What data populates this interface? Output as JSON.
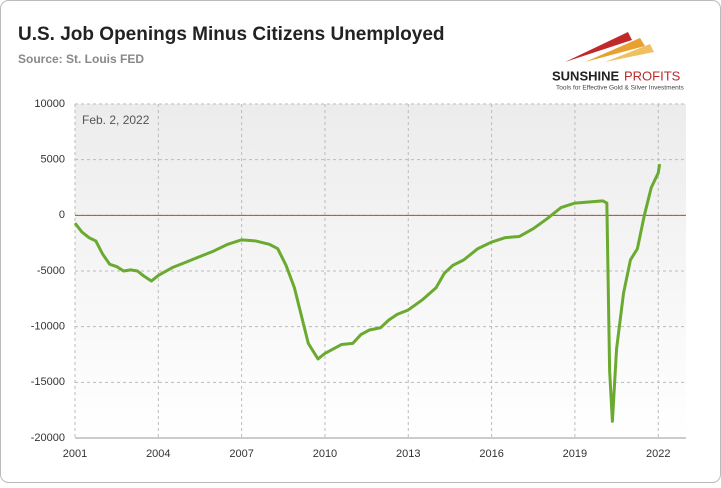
{
  "chart_data": {
    "type": "line",
    "title": "U.S. Job Openings Minus Citizens Unemployed",
    "subtitle": "Source: St. Louis FED",
    "annotation": "Feb. 2, 2022",
    "logo": {
      "name_1": "SUNSHINE",
      "name_2": "PROFITS",
      "tagline": "Tools for Effective Gold & Silver Investments"
    },
    "x": [
      2001.0,
      2001.25,
      2001.5,
      2001.75,
      2002.0,
      2002.25,
      2002.5,
      2002.75,
      2003.0,
      2003.25,
      2003.45,
      2003.75,
      2004.0,
      2004.5,
      2005.0,
      2005.5,
      2006.0,
      2006.5,
      2007.0,
      2007.5,
      2008.0,
      2008.3,
      2008.6,
      2008.9,
      2009.2,
      2009.4,
      2009.6,
      2009.75,
      2010.0,
      2010.3,
      2010.6,
      2011.0,
      2011.3,
      2011.6,
      2012.0,
      2012.3,
      2012.6,
      2013.0,
      2013.5,
      2014.0,
      2014.3,
      2014.6,
      2015.0,
      2015.5,
      2016.0,
      2016.5,
      2017.0,
      2017.5,
      2018.0,
      2018.5,
      2019.0,
      2019.5,
      2020.0,
      2020.15,
      2020.25,
      2020.35,
      2020.5,
      2020.75,
      2021.0,
      2021.25,
      2021.5,
      2021.75,
      2022.0,
      2022.05
    ],
    "series": [
      {
        "name": "Job Openings Minus Citizens Unemployed",
        "color": "#6aaa30",
        "values": [
          -700,
          -1500,
          -2000,
          -2300,
          -3500,
          -4400,
          -4600,
          -5000,
          -4900,
          -5000,
          -5400,
          -5900,
          -5400,
          -4700,
          -4200,
          -3700,
          -3200,
          -2600,
          -2200,
          -2300,
          -2600,
          -3000,
          -4500,
          -6500,
          -9500,
          -11500,
          -12300,
          -12900,
          -12400,
          -12000,
          -11600,
          -11500,
          -10700,
          -10300,
          -10100,
          -9400,
          -8900,
          -8500,
          -7600,
          -6500,
          -5200,
          -4500,
          -4000,
          -3000,
          -2400,
          -2000,
          -1900,
          -1200,
          -300,
          700,
          1100,
          1200,
          1300,
          1100,
          -14000,
          -18500,
          -12000,
          -7000,
          -4000,
          -3000,
          0,
          2500,
          3800,
          4600
        ]
      }
    ],
    "xlim": [
      2001,
      2023
    ],
    "xticks": [
      2001,
      2004,
      2007,
      2010,
      2013,
      2016,
      2019,
      2022
    ],
    "ylim": [
      -20000,
      10000
    ],
    "yticks": [
      -20000,
      -15000,
      -10000,
      -5000,
      0,
      5000,
      10000
    ],
    "grid": true,
    "hline": {
      "value": 0,
      "color": "#d0402a"
    }
  }
}
